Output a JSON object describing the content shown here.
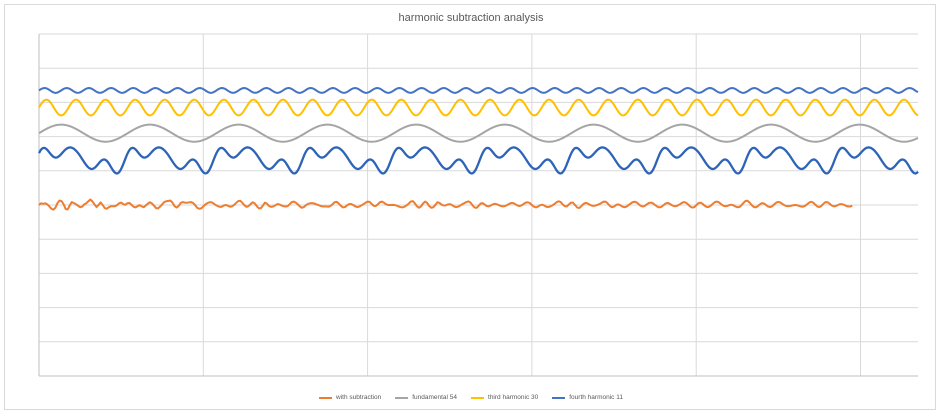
{
  "chart_data": {
    "type": "line",
    "title": "harmonic subtraction analysis",
    "xlabel": "",
    "ylabel": "",
    "grid": true,
    "legend_position": "bottom",
    "x_range": [
      0,
      5.35
    ],
    "y_range": [
      -1,
      9
    ],
    "series": [
      {
        "name": "with subtraction",
        "color": "#ed7d31",
        "line_width": 2,
        "x_step": 0.0125,
        "values": [
          4.0,
          4.05,
          4.035,
          4.05,
          4.02,
          3.965,
          3.89,
          3.865,
          3.92,
          4.055,
          4.13,
          4.11,
          4.02,
          3.88,
          3.87,
          3.995,
          4.085,
          4.055,
          4.025,
          3.98,
          3.935,
          3.95,
          4.015,
          4.05,
          4.105,
          4.16,
          4.105,
          4.02,
          3.94,
          4.0,
          4.075,
          4.0,
          3.91,
          3.89,
          3.935,
          3.965,
          3.965,
          3.965,
          3.995,
          4.05,
          4.07,
          4.025,
          4.005,
          4.05,
          4.06,
          4.01,
          3.95,
          3.93,
          3.965,
          3.995,
          3.96,
          3.935,
          3.985,
          4.04,
          4.08,
          4.045,
          3.98,
          3.91,
          3.9,
          3.955,
          4.02,
          4.085,
          4.11,
          4.12,
          4.13,
          4.07,
          3.965,
          3.925,
          3.97,
          4.06,
          4.085,
          4.07,
          4.065,
          4.075,
          4.085,
          4.06,
          4.0,
          3.92,
          3.89,
          3.9,
          3.955,
          4.015,
          4.055,
          4.08,
          4.08,
          4.045,
          4.0,
          3.97,
          3.945,
          3.95,
          3.985,
          4.0,
          3.98,
          3.95,
          3.96,
          4.005,
          4.06,
          4.115,
          4.125,
          4.065,
          3.995,
          3.945,
          3.965,
          4.025,
          4.08,
          4.05,
          3.97,
          3.905,
          3.905,
          3.98,
          4.07,
          4.04,
          3.97,
          3.945,
          3.955,
          3.99,
          4.025,
          4.02,
          3.99,
          3.965,
          3.955,
          3.965,
          4.02,
          4.08,
          4.1,
          4.07,
          4.02,
          3.96,
          3.92,
          3.94,
          3.995,
          4.035,
          4.05,
          4.055,
          4.045,
          4.02,
          4.0,
          3.975,
          3.96,
          3.955,
          3.955,
          3.95,
          3.975,
          4.025,
          4.085,
          4.09,
          4.04,
          3.975,
          3.93,
          3.94,
          3.99,
          4.025,
          4.03,
          4.0,
          3.96,
          3.94,
          3.955,
          3.99,
          4.025,
          4.065,
          4.1,
          4.09,
          4.03,
          3.975,
          3.97,
          4.02,
          4.08,
          4.1,
          4.065,
          4.02,
          4.0,
          4.0,
          4.005,
          4.0,
          3.985,
          3.96,
          3.94,
          3.93,
          3.95,
          3.99,
          4.04,
          4.1,
          4.115,
          4.05,
          3.965,
          3.92,
          3.96,
          4.045,
          4.1,
          4.06,
          3.97,
          3.92,
          3.935,
          4.005,
          4.08,
          4.06,
          4.01,
          3.985,
          3.99,
          4.015,
          4.025,
          4.005,
          3.96,
          3.94,
          3.95,
          3.98,
          4.02,
          4.05,
          4.085,
          4.105,
          4.075,
          4.0,
          3.93,
          3.915,
          3.97,
          4.04,
          4.055,
          4.015,
          3.97,
          3.96,
          3.985,
          4.02,
          4.035,
          4.02,
          3.995,
          3.97,
          3.96,
          3.97,
          4.0,
          4.035,
          4.06,
          4.055,
          4.02,
          3.985,
          3.97,
          3.99,
          4.03,
          4.07,
          4.08,
          4.055,
          4.0,
          3.95,
          3.93,
          3.955,
          3.995,
          4.01,
          3.985,
          3.95,
          3.94,
          3.96,
          3.99,
          4.03,
          4.08,
          4.11,
          4.085,
          4.02,
          3.965,
          3.96,
          4.015,
          4.07,
          4.07,
          4.0,
          3.93,
          3.91,
          3.96,
          4.025,
          4.06,
          4.05,
          4.015,
          3.985,
          3.975,
          3.985,
          4.005,
          4.03,
          4.065,
          4.1,
          4.095,
          4.04,
          3.97,
          3.935,
          3.955,
          4.0,
          4.02,
          3.995,
          3.955,
          3.935,
          3.95,
          3.995,
          4.04,
          4.08,
          4.095,
          4.075,
          4.025,
          3.975,
          3.955,
          3.975,
          4.02,
          4.06,
          4.07,
          4.045,
          4.0,
          3.955,
          3.93,
          3.945,
          3.99,
          4.04,
          4.06,
          4.04,
          4.0,
          3.97,
          3.965,
          3.985,
          4.02,
          4.06,
          4.085,
          4.07,
          4.02,
          3.96,
          3.925,
          3.935,
          3.99,
          4.05,
          4.07,
          4.04,
          3.985,
          3.945,
          3.94,
          3.975,
          4.03,
          4.08,
          4.1,
          4.08,
          4.03,
          3.985,
          3.965,
          3.97,
          3.995,
          4.01,
          3.995,
          3.96,
          3.935,
          3.94,
          3.99,
          4.06,
          4.12,
          4.125,
          4.07,
          4.0,
          3.945,
          3.93,
          3.965,
          4.02,
          4.055,
          4.045,
          4.0,
          3.955,
          3.94,
          3.965,
          4.02,
          4.07,
          4.09,
          4.07,
          4.03,
          3.99,
          3.97,
          3.965,
          3.975,
          3.99,
          4.0,
          3.995,
          3.975,
          3.955,
          3.95,
          3.975,
          4.02,
          4.07,
          4.095,
          4.07,
          4.01,
          3.955,
          3.94,
          3.975,
          4.04,
          4.085,
          4.08,
          4.035,
          3.985,
          3.96,
          3.97,
          4.0,
          4.025,
          4.025,
          4.005,
          3.975,
          3.955,
          3.955,
          3.98
        ]
      },
      {
        "name": "fundamental 54",
        "color": "#a5a5a5",
        "line_width": 2,
        "offset": 6.1,
        "amplitude": 0.25,
        "period": 0.54,
        "phase": 0
      },
      {
        "name": "third harmonic 30",
        "color": "#ffc000",
        "line_width": 2,
        "offset": 6.85,
        "amplitude": 0.23,
        "period": 0.18,
        "phase": 0
      },
      {
        "name": "fourth harmonic 11",
        "color": "#4472c4",
        "line_width": 2,
        "offset": 7.35,
        "amplitude": 0.07,
        "period": 0.135,
        "phase": 0
      },
      {
        "name": "",
        "color": "#2e64b8",
        "line_width": 2.3,
        "offset": 5.35,
        "components": [
          {
            "amplitude": 0.25,
            "period": 0.54,
            "phase": 0
          },
          {
            "amplitude": 0.2,
            "period": 0.18,
            "phase": 0.6
          },
          {
            "amplitude": 0.06,
            "period": 0.135,
            "phase": 1.1
          }
        ]
      }
    ]
  }
}
